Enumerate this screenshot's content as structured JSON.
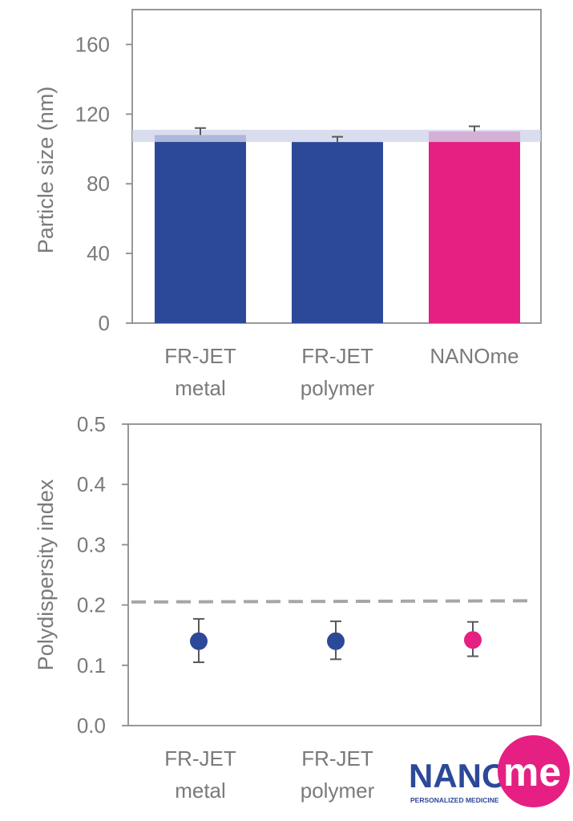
{
  "chart_data": [
    {
      "type": "bar",
      "ylabel": "Particle size (nm)",
      "ylim": [
        0,
        180
      ],
      "yticks": [
        0,
        40,
        80,
        120,
        160
      ],
      "categories": [
        [
          "FR-JET",
          "metal"
        ],
        [
          "FR-JET",
          "polymer"
        ],
        [
          "NANOme"
        ]
      ],
      "values": [
        108,
        104,
        110
      ],
      "errors": [
        4,
        3,
        3
      ],
      "bar_colors": [
        "#2c4899",
        "#2c4899",
        "#e61f82"
      ],
      "reference_band": [
        104,
        111
      ],
      "band_color": "#d0d5ea",
      "grid": false
    },
    {
      "type": "scatter",
      "ylabel": "Polydispersity index",
      "ylim": [
        0,
        0.5
      ],
      "yticks": [
        "0.0",
        "0.1",
        "0.2",
        "0.3",
        "0.4",
        "0.5"
      ],
      "categories": [
        [
          "FR-JET",
          "metal"
        ],
        [
          "FR-JET",
          "polymer"
        ],
        [
          "NANOme"
        ]
      ],
      "values": [
        0.14,
        0.14,
        0.142
      ],
      "err_low": [
        0.035,
        0.03,
        0.027
      ],
      "err_high": [
        0.037,
        0.033,
        0.03
      ],
      "point_colors": [
        "#2c4899",
        "#2c4899",
        "#e61f82"
      ],
      "threshold_line": [
        0.205,
        0.207
      ],
      "threshold_color": "#a6a6a6",
      "grid": false
    }
  ],
  "logo": {
    "word": "NANO",
    "mark": "me",
    "tagline": "PERSONALIZED MEDICINE",
    "word_color": "#2c4899",
    "mark_color": "#e61f82"
  }
}
